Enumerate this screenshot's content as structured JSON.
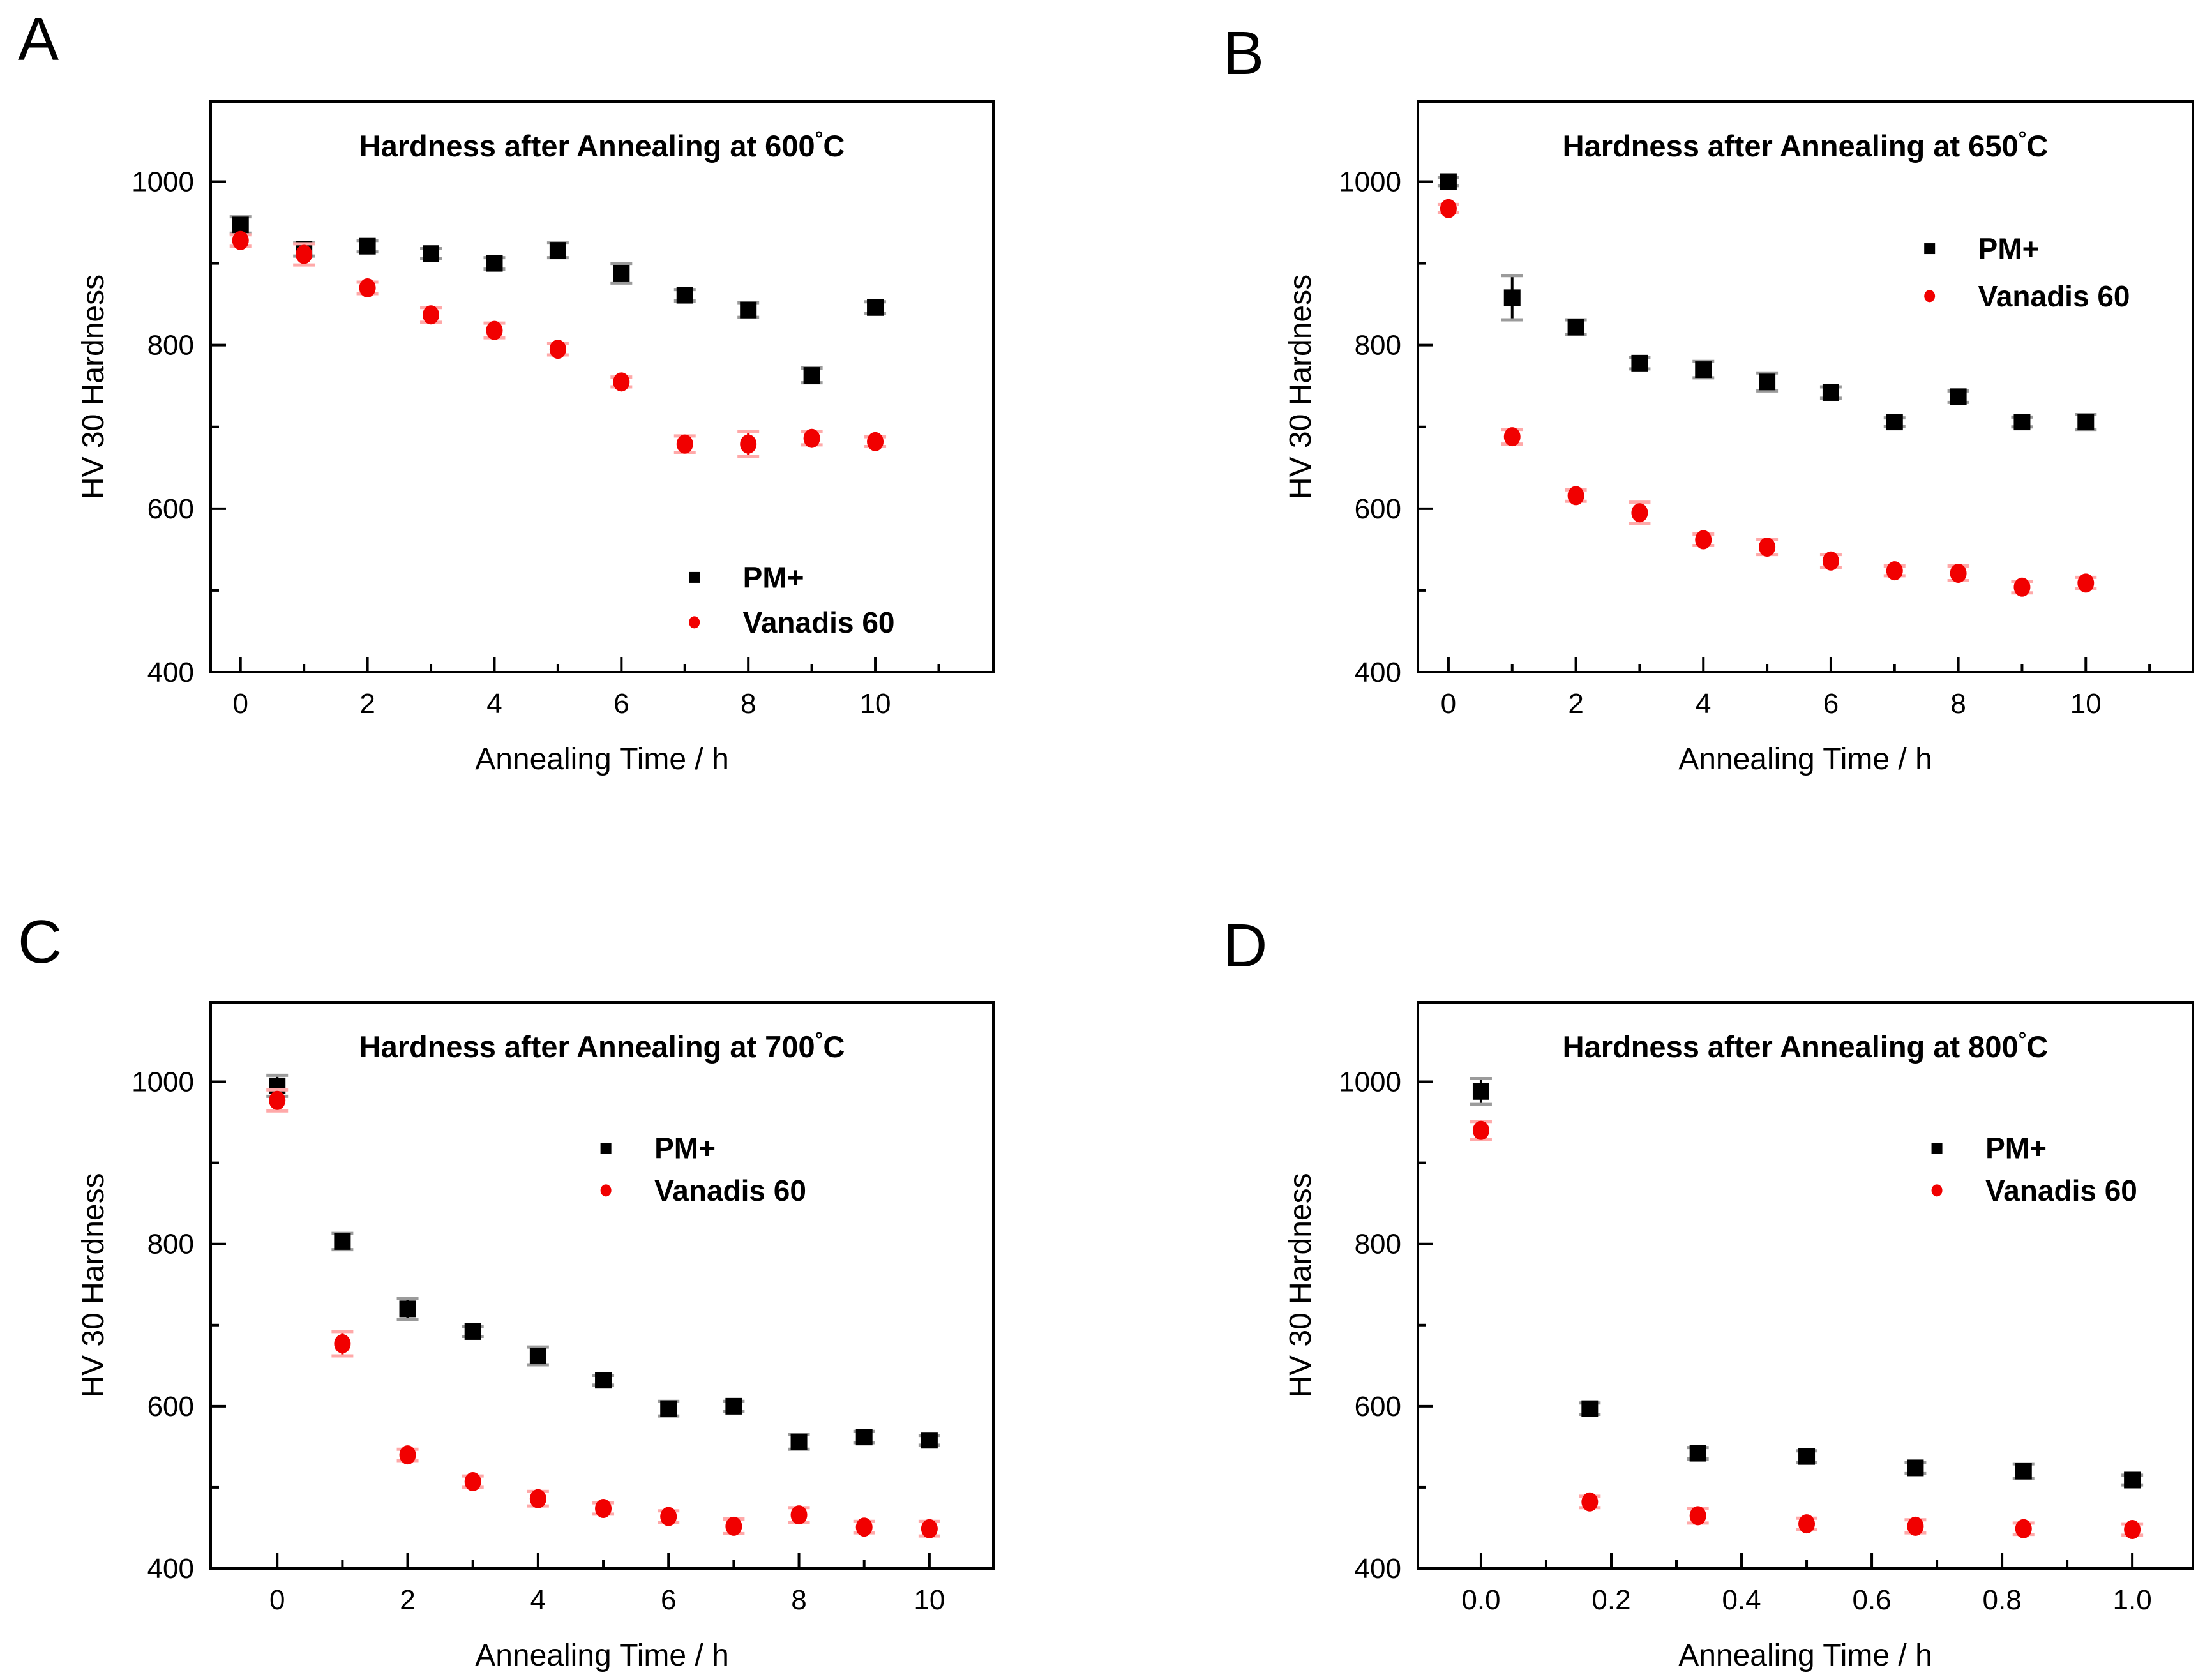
{
  "figure": {
    "panel_letters": [
      "A",
      "B",
      "C",
      "D"
    ],
    "x_axis_label": "Annealing Time / h",
    "y_axis_label": "HV 30 Hardness",
    "series_legend": [
      "PM+",
      "Vanadis 60"
    ],
    "colors": {
      "pm_marker": "#000000",
      "pm_errorbar_cap": "#9b9b9b",
      "vanadis_marker": "#f10000",
      "vanadis_errorbar_cap": "#ffa9a9",
      "frame": "#000000",
      "text": "#000000",
      "background": "#ffffff"
    }
  },
  "chart_data": [
    {
      "id": "A",
      "type": "scatter",
      "title": "Hardness after Annealing at 600°C",
      "xlabel": "Annealing Time / h",
      "ylabel": "HV 30 Hardness",
      "xlim": [
        -0.47,
        11.86
      ],
      "ylim": [
        400,
        1098
      ],
      "xticks": [
        0,
        2,
        4,
        6,
        8,
        10
      ],
      "xtick_labels": [
        "0",
        "2",
        "4",
        "6",
        "8",
        "10"
      ],
      "xminor": [
        1,
        3,
        5,
        7,
        9,
        11
      ],
      "yticks": [
        400,
        600,
        800,
        1000
      ],
      "ytick_labels": [
        "400",
        "600",
        "800",
        "1000"
      ],
      "yminor": [
        500,
        700,
        900
      ],
      "grid": false,
      "legend_pos": {
        "x": 7.15,
        "y": [
          516,
          461
        ]
      },
      "x": [
        0,
        1,
        2,
        3,
        4,
        5,
        6,
        7,
        8,
        9,
        10
      ],
      "series": [
        {
          "name": "PM+",
          "marker": "square",
          "values": [
            947,
            917,
            921,
            912,
            900,
            916,
            888,
            861,
            843,
            763,
            846
          ],
          "errors": [
            10,
            8,
            7,
            6,
            7,
            9,
            12,
            7,
            9,
            9,
            7
          ]
        },
        {
          "name": "Vanadis 60",
          "marker": "circle",
          "values": [
            928,
            911,
            870,
            837,
            818,
            795,
            755,
            679,
            679,
            686,
            682
          ],
          "errors": [
            7,
            13,
            7,
            9,
            9,
            7,
            6,
            10,
            15,
            8,
            6
          ]
        }
      ]
    },
    {
      "id": "B",
      "type": "scatter",
      "title": "Hardness after Annealing at 650°C",
      "xlabel": "Annealing Time / h",
      "ylabel": "HV 30 Hardness",
      "xlim": [
        -0.48,
        11.68
      ],
      "ylim": [
        400,
        1098
      ],
      "xticks": [
        0,
        2,
        4,
        6,
        8,
        10
      ],
      "xtick_labels": [
        "0",
        "2",
        "4",
        "6",
        "8",
        "10"
      ],
      "xminor": [
        1,
        3,
        5,
        7,
        9,
        11
      ],
      "yticks": [
        400,
        600,
        800,
        1000
      ],
      "ytick_labels": [
        "400",
        "600",
        "800",
        "1000"
      ],
      "yminor": [
        500,
        700,
        900
      ],
      "grid": false,
      "legend_pos": {
        "x": 7.55,
        "y": [
          918,
          860
        ]
      },
      "x": [
        0,
        1,
        2,
        3,
        4,
        5,
        6,
        7,
        8,
        9,
        10
      ],
      "series": [
        {
          "name": "PM+",
          "marker": "square",
          "values": [
            1000,
            858,
            822,
            778,
            770,
            755,
            742,
            706,
            737,
            706,
            706
          ],
          "errors": [
            5,
            27,
            9,
            7,
            10,
            11,
            7,
            5,
            7,
            6,
            9
          ]
        },
        {
          "name": "Vanadis 60",
          "marker": "circle",
          "values": [
            967,
            688,
            616,
            595,
            562,
            553,
            536,
            524,
            521,
            504,
            509
          ],
          "errors": [
            5,
            9,
            7,
            13,
            7,
            9,
            8,
            6,
            9,
            7,
            7
          ]
        }
      ]
    },
    {
      "id": "C",
      "type": "scatter",
      "title": "Hardness after Annealing at 700°C",
      "xlabel": "Annealing Time / h",
      "ylabel": "HV 30 Hardness",
      "xlim": [
        -1.02,
        10.98
      ],
      "ylim": [
        400,
        1098
      ],
      "xticks": [
        0,
        2,
        4,
        6,
        8,
        10
      ],
      "xtick_labels": [
        "0",
        "2",
        "4",
        "6",
        "8",
        "10"
      ],
      "xminor": [
        1,
        3,
        5,
        7,
        9
      ],
      "yticks": [
        400,
        600,
        800,
        1000
      ],
      "ytick_labels": [
        "400",
        "600",
        "800",
        "1000"
      ],
      "yminor": [
        500,
        700,
        900
      ],
      "grid": false,
      "legend_pos": {
        "x": 5.04,
        "y": [
          918,
          866
        ]
      },
      "x": [
        0,
        1,
        2,
        3,
        4,
        5,
        6,
        7,
        8,
        9,
        10
      ],
      "series": [
        {
          "name": "PM+",
          "marker": "square",
          "values": [
            995,
            803,
            720,
            692,
            662,
            632,
            597,
            600,
            556,
            562,
            558
          ],
          "errors": [
            13,
            10,
            13,
            6,
            11,
            6,
            9,
            6,
            9,
            7,
            6
          ]
        },
        {
          "name": "Vanadis 60",
          "marker": "circle",
          "values": [
            977,
            677,
            540,
            507,
            486,
            474,
            464,
            452,
            466,
            451,
            449
          ],
          "errors": [
            13,
            15,
            7,
            7,
            9,
            7,
            7,
            9,
            9,
            7,
            9
          ]
        }
      ]
    },
    {
      "id": "D",
      "type": "scatter",
      "title": "Hardness after Annealing at 800°C",
      "xlabel": "Annealing Time / h",
      "ylabel": "HV 30 Hardness",
      "xlim": [
        -0.097,
        1.093
      ],
      "ylim": [
        400,
        1098
      ],
      "xticks": [
        0,
        0.2,
        0.4,
        0.6,
        0.8,
        1.0
      ],
      "xtick_labels": [
        "0.0",
        "0.2",
        "0.4",
        "0.6",
        "0.8",
        "1.0"
      ],
      "xminor": [
        0.1,
        0.3,
        0.5,
        0.7,
        0.9
      ],
      "yticks": [
        400,
        600,
        800,
        1000
      ],
      "ytick_labels": [
        "400",
        "600",
        "800",
        "1000"
      ],
      "yminor": [
        500,
        700,
        900
      ],
      "grid": false,
      "legend_pos": {
        "x": 0.7,
        "y": [
          918,
          866
        ]
      },
      "x": [
        0,
        0.167,
        0.333,
        0.5,
        0.667,
        0.833,
        1.0
      ],
      "series": [
        {
          "name": "PM+",
          "marker": "square",
          "values": [
            988,
            597,
            542,
            538,
            524,
            520,
            509
          ],
          "errors": [
            16,
            7,
            7,
            7,
            7,
            9,
            6
          ]
        },
        {
          "name": "Vanadis 60",
          "marker": "circle",
          "values": [
            940,
            482,
            465,
            455,
            452,
            449,
            448
          ],
          "errors": [
            11,
            7,
            9,
            7,
            8,
            7,
            7
          ]
        }
      ]
    }
  ]
}
